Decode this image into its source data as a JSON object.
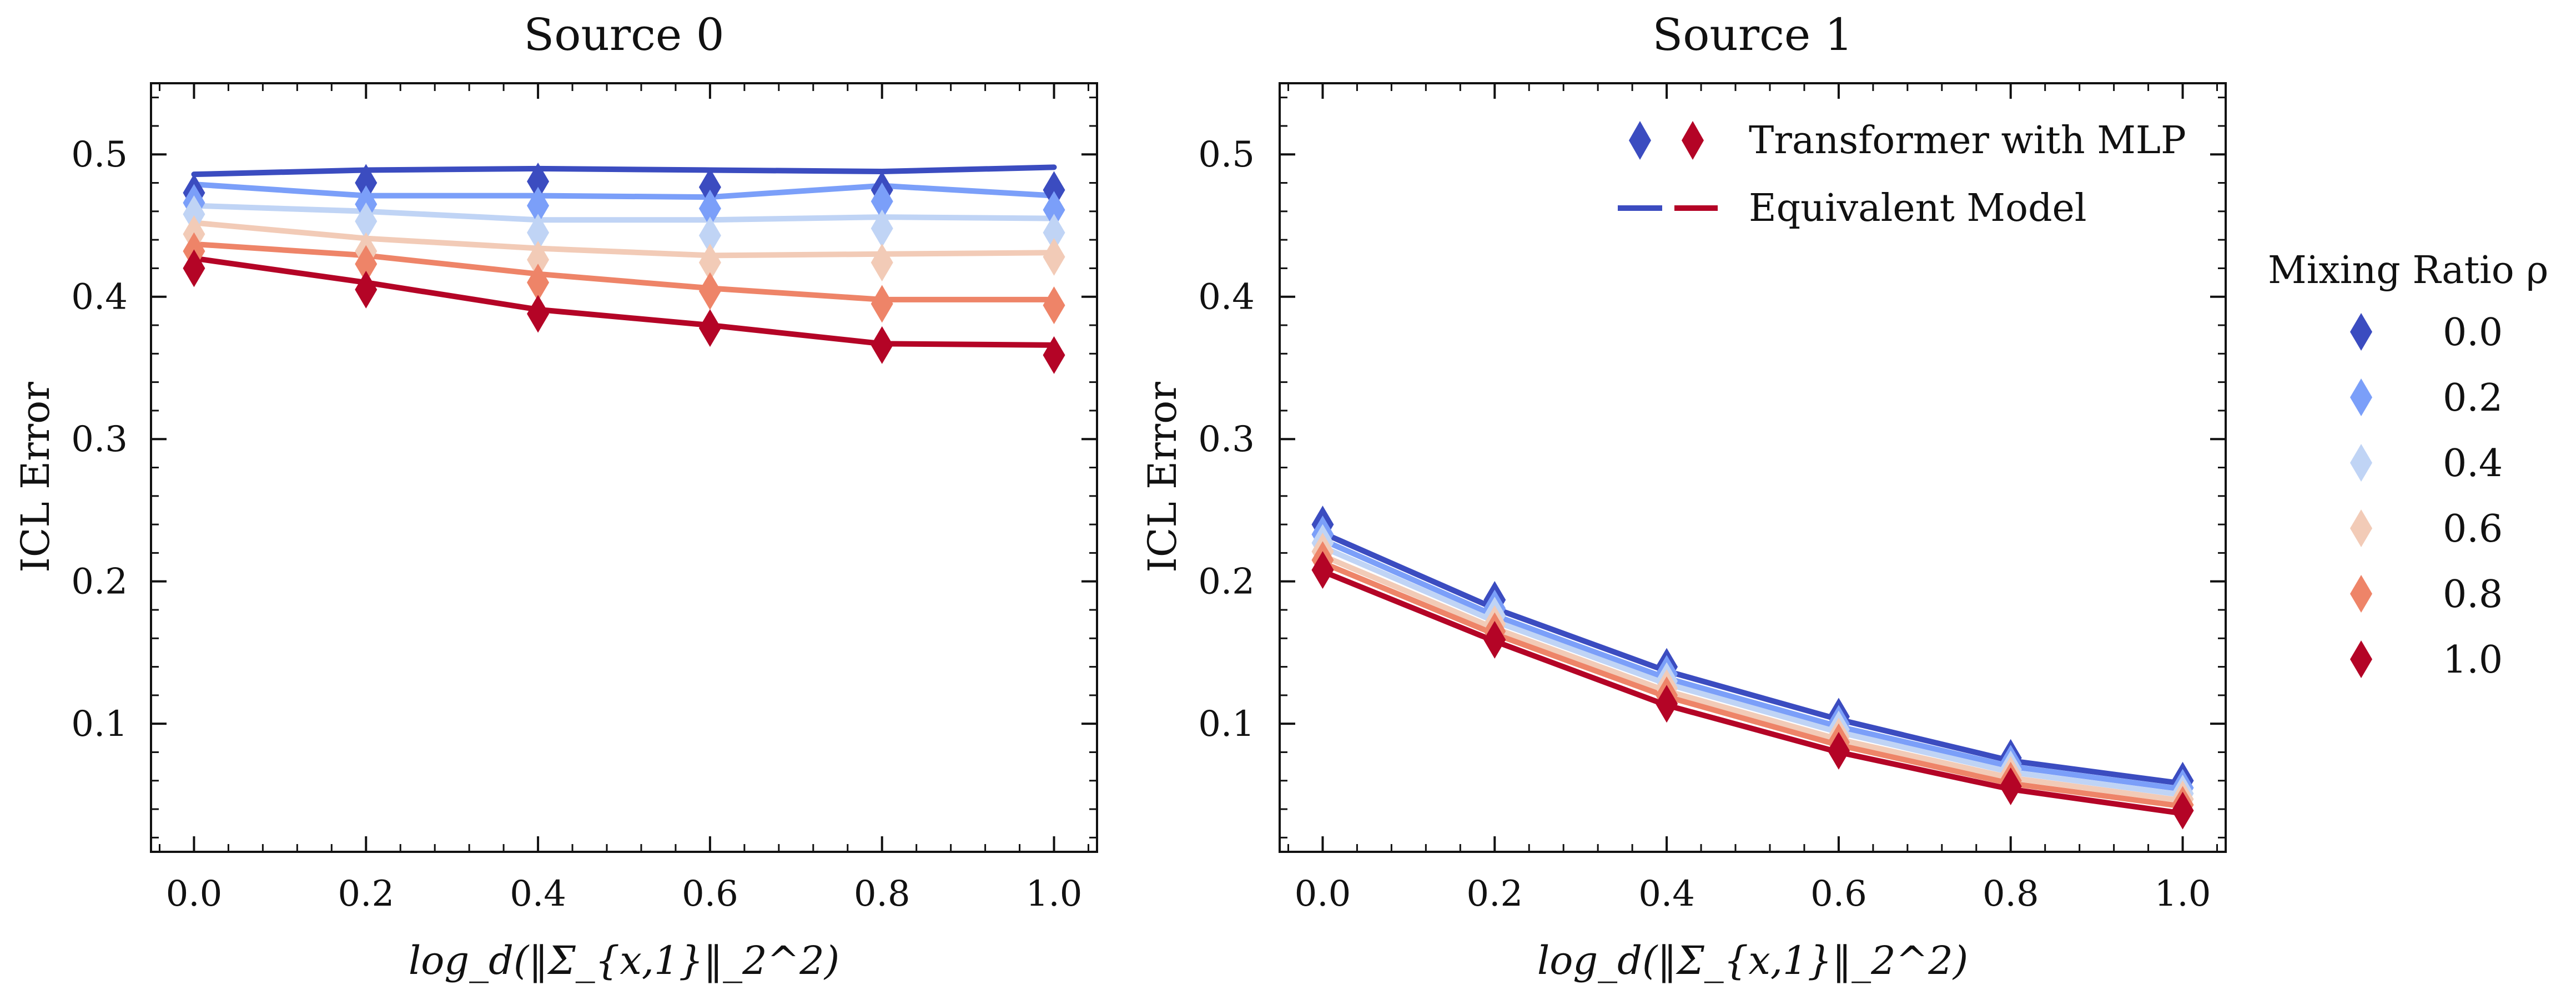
{
  "figure": {
    "series_colors": [
      "#3b4cc0",
      "#7b9ff9",
      "#c0d4f5",
      "#f2cbb7",
      "#ee8468",
      "#b40426"
    ]
  },
  "legend": {
    "marker_entry_label": "Transformer with MLP",
    "line_entry_label": "Equivalent Model",
    "ratio_title": "Mixing Ratio ρ",
    "ratio_items": [
      "0.0",
      "0.2",
      "0.4",
      "0.6",
      "0.8",
      "1.0"
    ]
  },
  "chart_data": [
    {
      "type": "line",
      "title": "Source 0",
      "xlabel": "log_d(‖Σ_{x,1}‖_2^2)",
      "ylabel": "ICL Error",
      "xlim": [
        -0.05,
        1.05
      ],
      "ylim": [
        0.01,
        0.55
      ],
      "xticks": [
        "0.0",
        "0.2",
        "0.4",
        "0.6",
        "0.8",
        "1.0"
      ],
      "yticks": [
        "0.1",
        "0.2",
        "0.3",
        "0.4",
        "0.5"
      ],
      "x": [
        0.0,
        0.2,
        0.4,
        0.6,
        0.8,
        1.0
      ],
      "series": [
        {
          "name": "0.0",
          "line": [
            0.486,
            0.489,
            0.49,
            0.489,
            0.488,
            0.491
          ],
          "markers": [
            0.473,
            0.48,
            0.481,
            0.477,
            0.475,
            0.475
          ]
        },
        {
          "name": "0.2",
          "line": [
            0.479,
            0.471,
            0.471,
            0.47,
            0.478,
            0.471
          ],
          "markers": [
            0.466,
            0.465,
            0.464,
            0.462,
            0.467,
            0.461
          ]
        },
        {
          "name": "0.4",
          "line": [
            0.464,
            0.46,
            0.454,
            0.454,
            0.456,
            0.455
          ],
          "markers": [
            0.458,
            0.453,
            0.445,
            0.443,
            0.448,
            0.445
          ]
        },
        {
          "name": "0.6",
          "line": [
            0.452,
            0.441,
            0.434,
            0.429,
            0.43,
            0.431
          ],
          "markers": [
            0.444,
            0.432,
            0.426,
            0.424,
            0.424,
            0.428
          ]
        },
        {
          "name": "0.8",
          "line": [
            0.437,
            0.429,
            0.416,
            0.406,
            0.398,
            0.398
          ],
          "markers": [
            0.432,
            0.423,
            0.41,
            0.404,
            0.395,
            0.394
          ]
        },
        {
          "name": "1.0",
          "line": [
            0.427,
            0.41,
            0.391,
            0.38,
            0.367,
            0.366
          ],
          "markers": [
            0.42,
            0.405,
            0.388,
            0.378,
            0.366,
            0.359
          ]
        }
      ]
    },
    {
      "type": "line",
      "title": "Source 1",
      "xlabel": "log_d(‖Σ_{x,1}‖_2^2)",
      "ylabel": "ICL Error",
      "xlim": [
        -0.05,
        1.05
      ],
      "ylim": [
        0.01,
        0.55
      ],
      "xticks": [
        "0.0",
        "0.2",
        "0.4",
        "0.6",
        "0.8",
        "1.0"
      ],
      "yticks": [
        "0.1",
        "0.2",
        "0.3",
        "0.4",
        "0.5"
      ],
      "x": [
        0.0,
        0.2,
        0.4,
        0.6,
        0.8,
        1.0
      ],
      "series": [
        {
          "name": "0.0",
          "line": [
            0.234,
            0.181,
            0.137,
            0.103,
            0.074,
            0.058
          ],
          "markers": [
            0.24,
            0.187,
            0.14,
            0.105,
            0.076,
            0.06
          ]
        },
        {
          "name": "0.2",
          "line": [
            0.229,
            0.176,
            0.132,
            0.098,
            0.07,
            0.054
          ],
          "markers": [
            0.233,
            0.181,
            0.135,
            0.1,
            0.072,
            0.055
          ]
        },
        {
          "name": "0.4",
          "line": [
            0.224,
            0.172,
            0.128,
            0.094,
            0.066,
            0.05
          ],
          "markers": [
            0.227,
            0.176,
            0.13,
            0.096,
            0.068,
            0.051
          ]
        },
        {
          "name": "0.6",
          "line": [
            0.218,
            0.167,
            0.123,
            0.089,
            0.062,
            0.046
          ],
          "markers": [
            0.221,
            0.17,
            0.125,
            0.091,
            0.064,
            0.047
          ]
        },
        {
          "name": "0.8",
          "line": [
            0.213,
            0.163,
            0.119,
            0.085,
            0.058,
            0.042
          ],
          "markers": [
            0.215,
            0.165,
            0.12,
            0.087,
            0.06,
            0.043
          ]
        },
        {
          "name": "1.0",
          "line": [
            0.207,
            0.158,
            0.113,
            0.08,
            0.054,
            0.037
          ],
          "markers": [
            0.208,
            0.159,
            0.114,
            0.081,
            0.056,
            0.039
          ]
        }
      ]
    }
  ]
}
